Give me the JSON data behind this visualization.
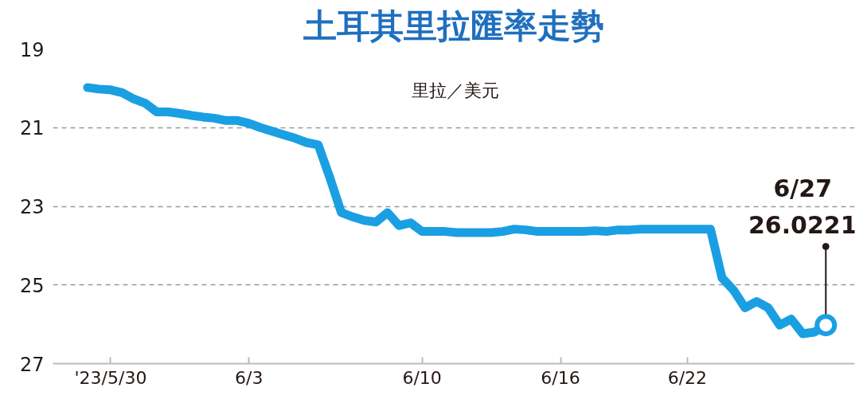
{
  "chart_data": {
    "type": "line",
    "title": "土耳其里拉匯率走勢",
    "ylabel": "里拉／美元",
    "categories": [
      null,
      null,
      "'23/5/30",
      null,
      null,
      null,
      null,
      null,
      null,
      null,
      null,
      null,
      null,
      null,
      "6/3",
      null,
      null,
      null,
      null,
      null,
      null,
      null,
      null,
      null,
      null,
      null,
      null,
      null,
      null,
      "6/10",
      null,
      null,
      null,
      null,
      null,
      null,
      null,
      null,
      null,
      null,
      null,
      "6/16",
      null,
      null,
      null,
      null,
      null,
      null,
      null,
      null,
      null,
      null,
      "6/22",
      null,
      null,
      null,
      null,
      null,
      null,
      null,
      null,
      null,
      null,
      null,
      null
    ],
    "series": [
      {
        "color": "#1a9fe3",
        "values": [
          19.98,
          20.02,
          20.04,
          20.11,
          20.27,
          20.38,
          20.6,
          20.6,
          20.64,
          20.69,
          20.73,
          20.76,
          20.82,
          20.82,
          20.89,
          21.0,
          21.09,
          21.18,
          21.27,
          21.38,
          21.44,
          22.27,
          23.16,
          23.27,
          23.36,
          23.4,
          23.16,
          23.49,
          23.42,
          23.64,
          23.64,
          23.64,
          23.67,
          23.67,
          23.67,
          23.67,
          23.64,
          23.58,
          23.6,
          23.64,
          23.64,
          23.64,
          23.64,
          23.64,
          23.62,
          23.64,
          23.6,
          23.6,
          23.58,
          23.58,
          23.58,
          23.58,
          23.58,
          23.58,
          23.58,
          24.82,
          25.13,
          25.58,
          25.42,
          25.58,
          26.02,
          25.87,
          26.24,
          26.2,
          26.0221
        ]
      }
    ],
    "ylim": [
      27,
      19
    ],
    "yticks": [
      19,
      21,
      23,
      25,
      27
    ],
    "grid": "y",
    "marker": "none",
    "line_style": "solid",
    "annotations": [
      "6/27\n26.0221"
    ]
  }
}
